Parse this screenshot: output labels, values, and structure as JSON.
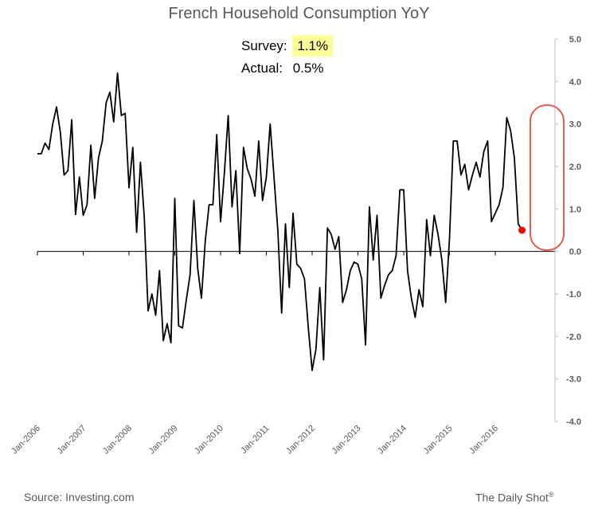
{
  "title": "French Household Consumption YoY",
  "annotation": {
    "survey_label": "Survey:",
    "survey_value": "1.1%",
    "actual_label": "Actual:",
    "actual_value": "0.5%"
  },
  "footer": {
    "source": "Source: Investing.com",
    "brand": "The Daily Shot",
    "brand_mark": "®"
  },
  "colors": {
    "line": "#000000",
    "highlight": "#e84c3d",
    "dot": "#ff0000",
    "survey_bg": "#ffff99",
    "text": "#595959"
  },
  "chart_data": {
    "type": "line",
    "title": "French Household Consumption YoY",
    "xlabel": "",
    "ylabel": "",
    "y_axis_side": "right",
    "ylim": [
      -4,
      5
    ],
    "y_ticks": [
      "5.0",
      "4.0",
      "3.0",
      "2.0",
      "1.0",
      "0.0",
      "-1.0",
      "-2.0",
      "-3.0",
      "-4.0"
    ],
    "x_ticks": [
      "Jan-2006",
      "Jan-2007",
      "Jan-2008",
      "Jan-2009",
      "Jan-2010",
      "Jan-2011",
      "Jan-2012",
      "Jan-2013",
      "Jan-2014",
      "Jan-2015",
      "Jan-2016"
    ],
    "grid": false,
    "legend": "none",
    "x_start": "Jan-2006",
    "frequency": "monthly",
    "series": [
      {
        "values": [
          2.3,
          2.3,
          2.55,
          2.4,
          3.0,
          3.4,
          2.8,
          1.8,
          1.9,
          3.1,
          0.87,
          1.75,
          0.85,
          1.1,
          2.5,
          1.25,
          2.2,
          2.6,
          3.5,
          3.75,
          3.05,
          4.2,
          3.2,
          3.25,
          1.5,
          2.45,
          0.45,
          2.1,
          0.8,
          -1.4,
          -1.0,
          -1.5,
          -0.45,
          -2.1,
          -1.7,
          -2.15,
          1.25,
          -1.75,
          -1.8,
          -1.15,
          -0.55,
          1.2,
          -0.4,
          -1.1,
          0.25,
          1.1,
          1.1,
          2.75,
          0.7,
          1.85,
          3.2,
          1.05,
          1.9,
          -0.05,
          2.45,
          1.95,
          1.7,
          1.3,
          2.6,
          1.2,
          1.75,
          3.0,
          1.75,
          0.5,
          -1.45,
          0.65,
          -0.85,
          0.9,
          -0.3,
          -0.4,
          -0.65,
          -1.8,
          -2.8,
          -2.3,
          -0.85,
          -2.55,
          0.55,
          0.4,
          0.05,
          0.35,
          -1.2,
          -0.9,
          -0.45,
          -0.25,
          -0.3,
          -0.65,
          -2.2,
          1.05,
          -0.2,
          0.85,
          -1.1,
          -0.8,
          -0.55,
          -0.45,
          -0.1,
          1.45,
          1.45,
          -0.45,
          -1.1,
          -1.55,
          -0.9,
          -1.3,
          0.75,
          -0.1,
          0.85,
          0.4,
          -0.2,
          -1.2,
          0.3,
          2.6,
          2.6,
          1.8,
          2.05,
          1.45,
          1.8,
          2.1,
          1.75,
          2.35,
          2.6,
          0.7,
          0.9,
          1.1,
          1.5,
          3.15,
          2.85,
          2.2,
          0.65,
          0.5
        ],
        "last_point": 0.5
      }
    ]
  }
}
